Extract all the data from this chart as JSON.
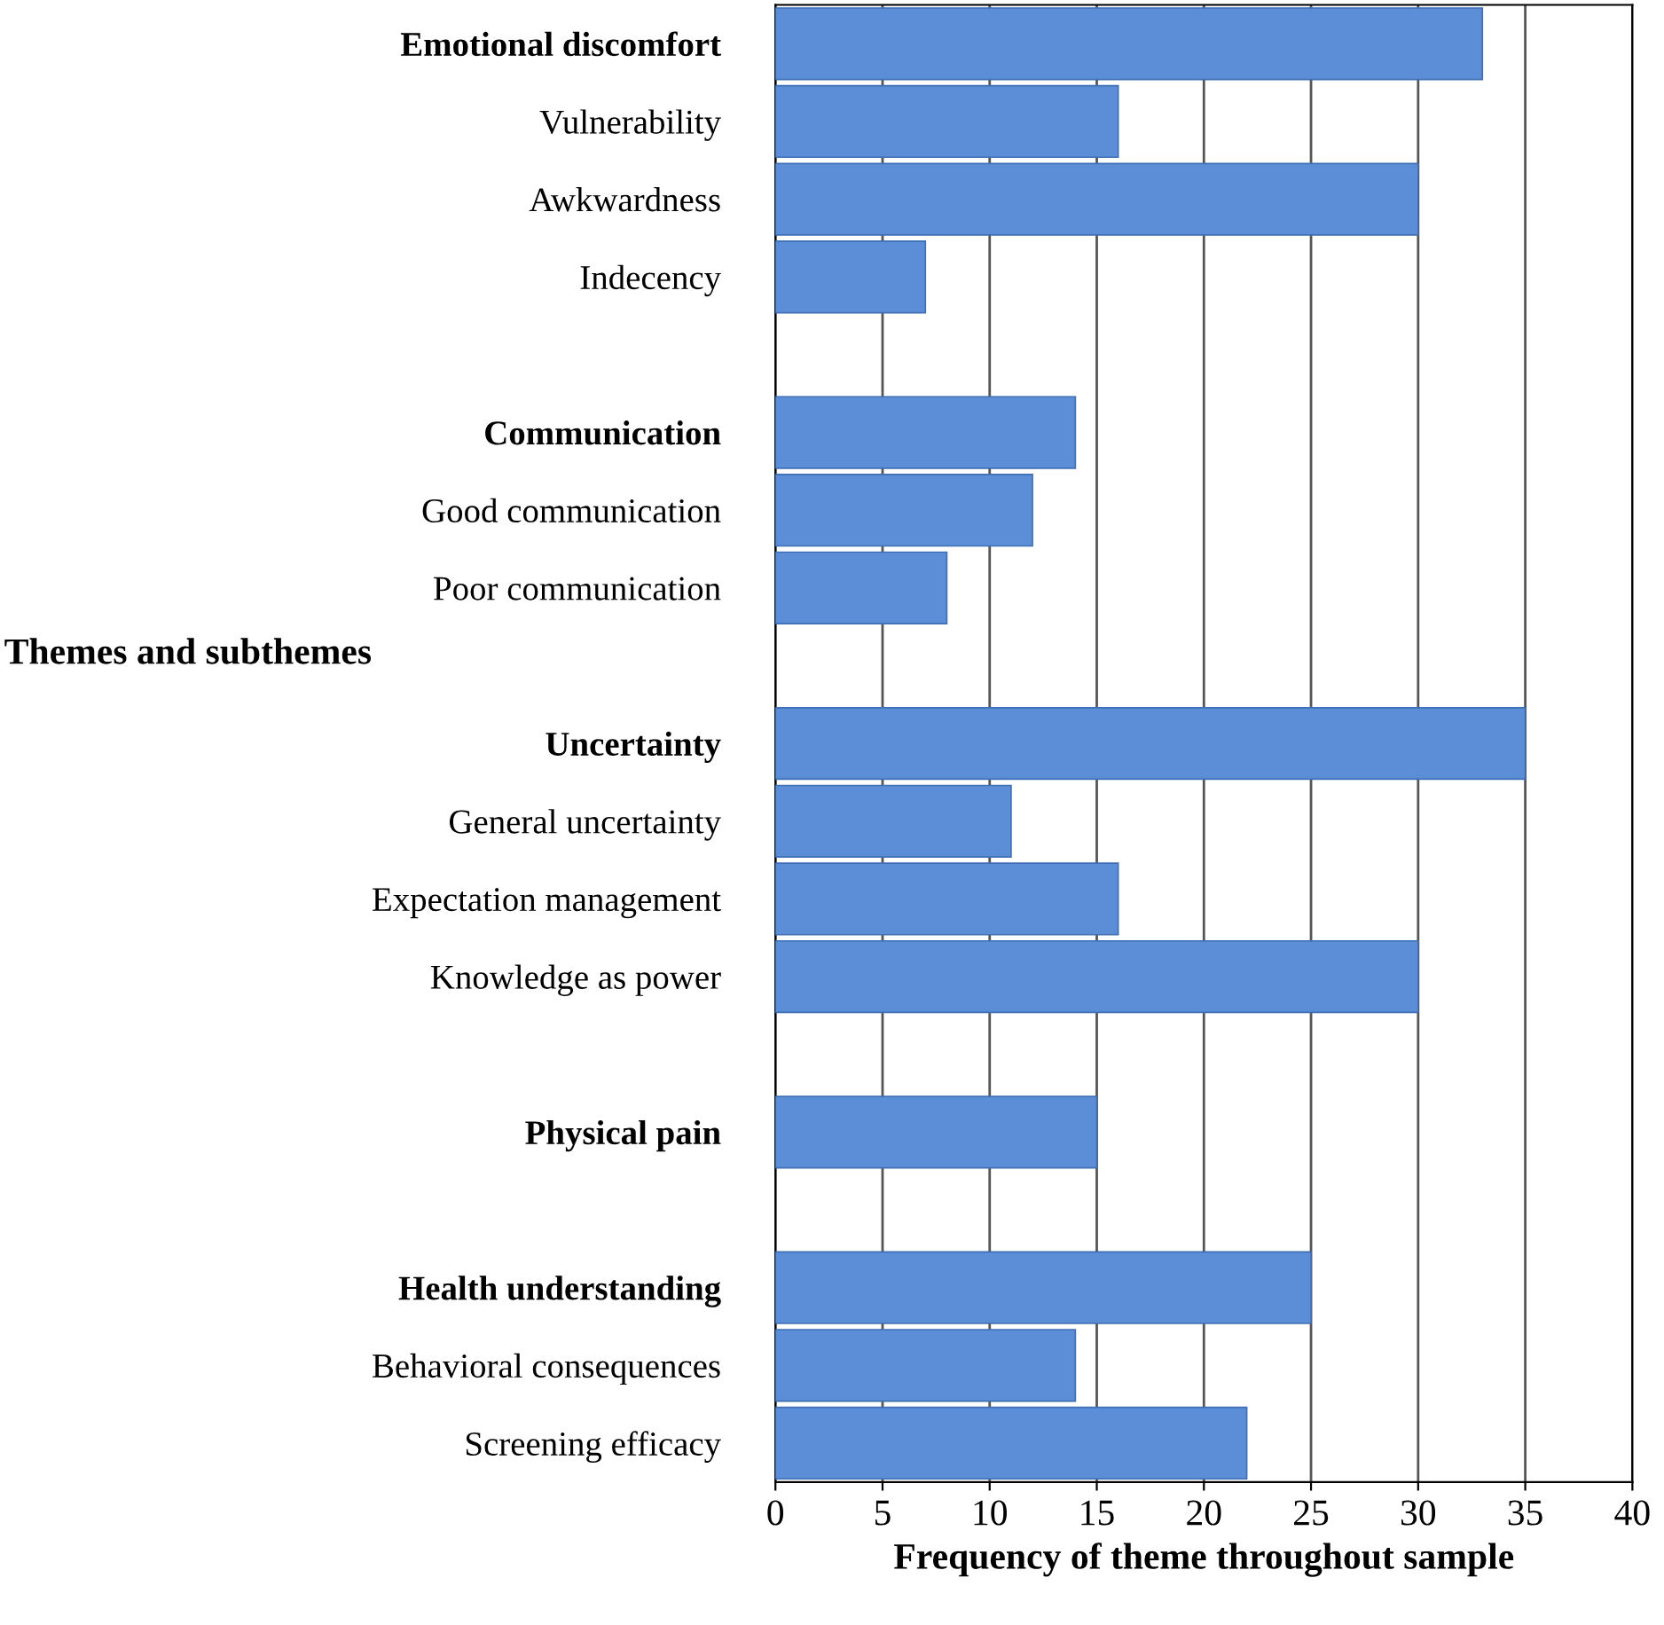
{
  "chart_data": {
    "type": "bar",
    "orientation": "horizontal",
    "categories": [
      "Emotional discomfort",
      "Vulnerability",
      "Awkwardness",
      "Indecency",
      null,
      "Communication",
      "Good communication",
      "Poor communication",
      null,
      "Uncertainty",
      "General uncertainty",
      "Expectation management",
      "Knowledge as power",
      null,
      "Physical pain",
      null,
      "Health understanding",
      "Behavioral consequences",
      "Screening efficacy"
    ],
    "values": [
      33,
      16,
      30,
      7,
      null,
      14,
      12,
      8,
      null,
      35,
      11,
      16,
      30,
      null,
      15,
      null,
      25,
      14,
      22
    ],
    "color": "#5b8ed6",
    "xlabel": "Frequency of theme throughout sample",
    "ylabel": "Themes and subthemes",
    "xlim": [
      0,
      40
    ],
    "xticks": [
      0,
      5,
      10,
      15,
      20,
      25,
      30,
      35,
      40
    ],
    "grid": "x"
  }
}
